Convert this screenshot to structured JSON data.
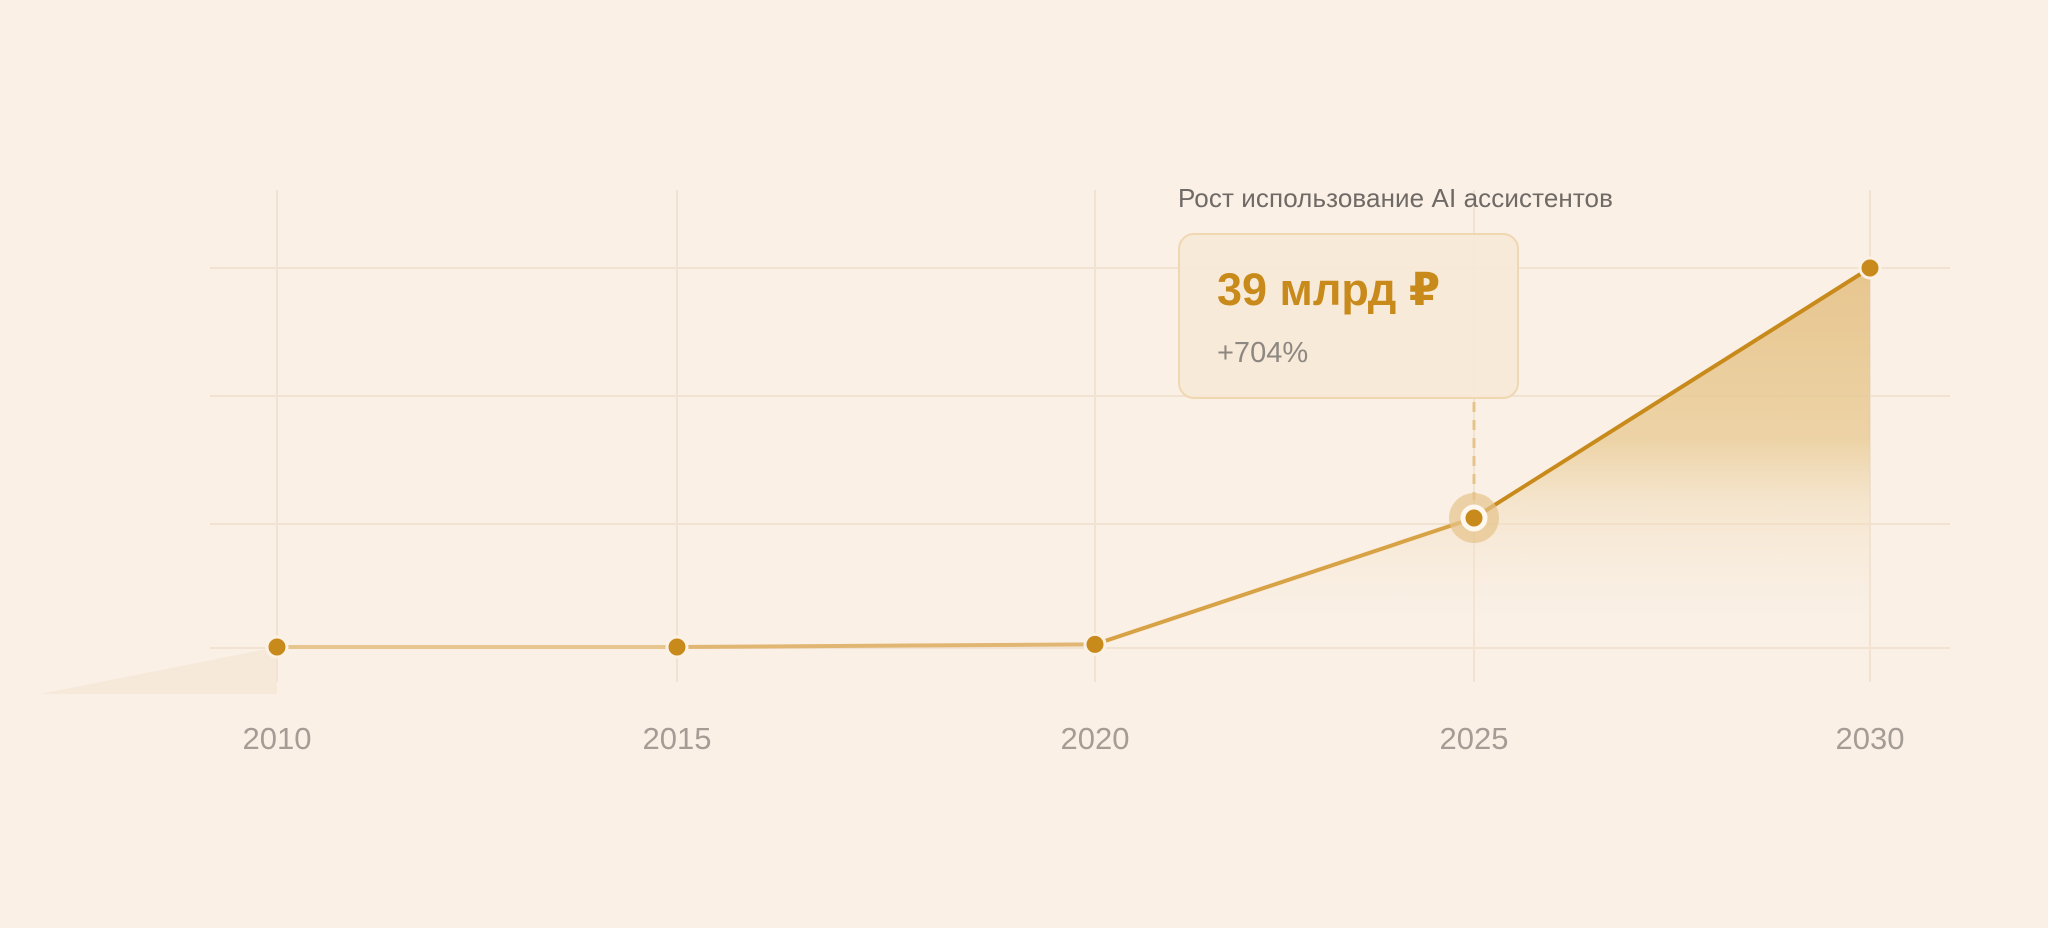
{
  "chart_data": {
    "type": "area",
    "x": [
      "2010",
      "2015",
      "2020",
      "2025",
      "2030"
    ],
    "series": [
      {
        "values": [
          0.3,
          0.3,
          1.1,
          39,
          114
        ]
      }
    ],
    "tick_labels": [
      "2010",
      "2015",
      "2020",
      "2025",
      "2030"
    ],
    "annotation": {
      "title": "Рост использование AI ассистентов",
      "value": "39 млрд ₽",
      "change": "+704%",
      "highlight_x": "2025"
    },
    "grid": true,
    "legend": "none",
    "colors": {
      "line": "#c98a1c",
      "point": "#c98a1c",
      "fill": "#e6c38a",
      "background": "#faf0e6"
    }
  }
}
